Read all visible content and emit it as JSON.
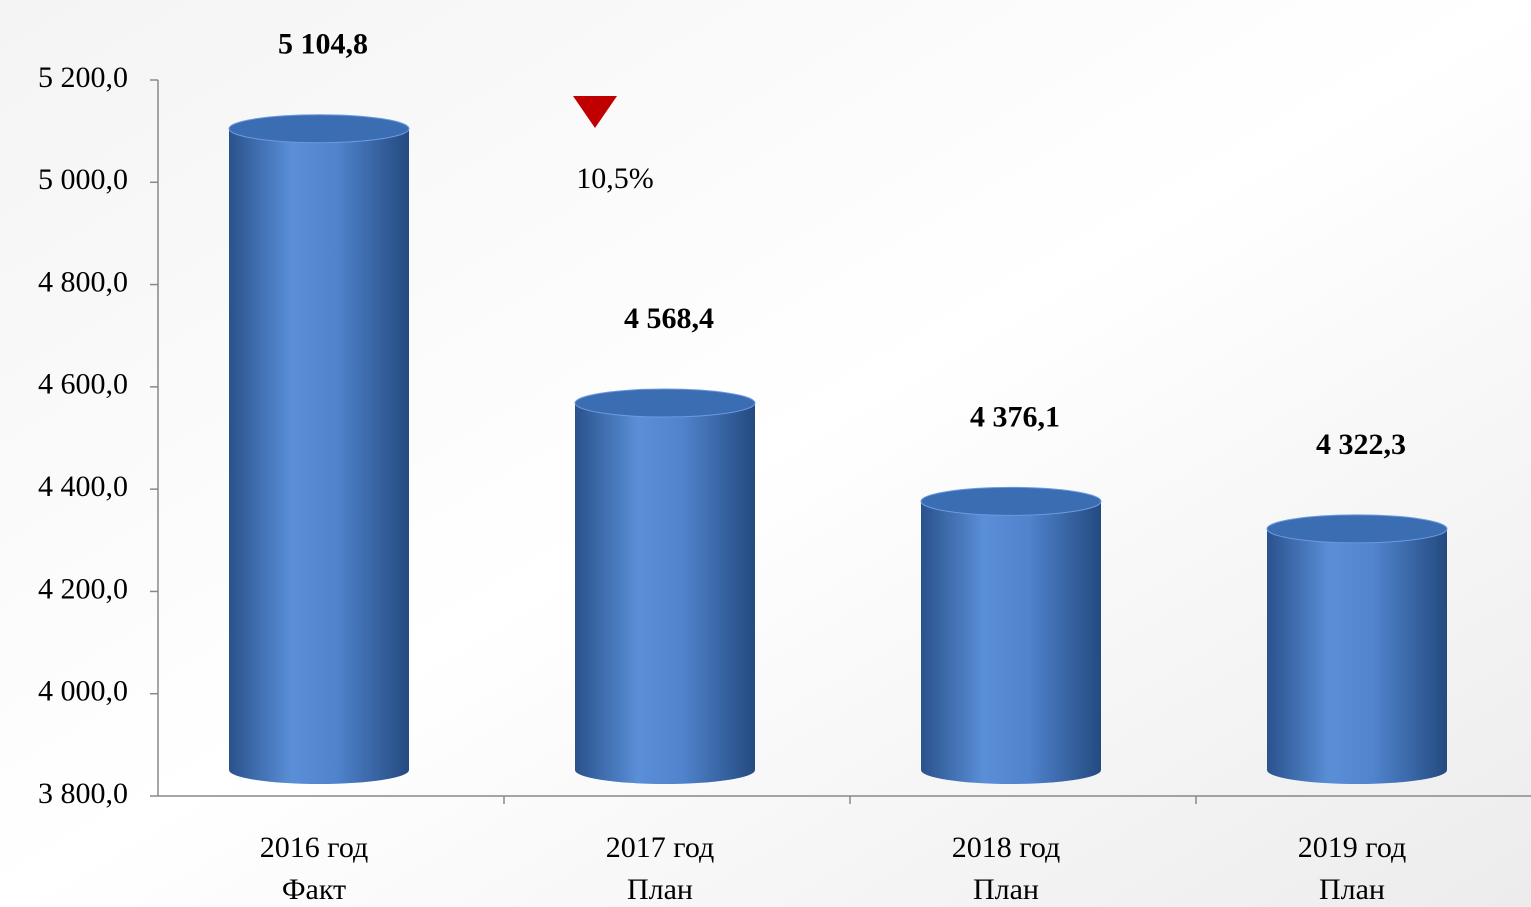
{
  "chart_data": {
    "type": "cylinder",
    "categories": [
      [
        "2016 год",
        "Факт"
      ],
      [
        "2017 год",
        "План"
      ],
      [
        "2018 год",
        "План"
      ],
      [
        "2019 год",
        "План"
      ]
    ],
    "values": [
      5104.8,
      4568.4,
      4376.1,
      4322.3
    ],
    "value_labels": [
      "5 104,8",
      "4 568,4",
      "4 376,1",
      "4 322,3"
    ],
    "color": "#4a7cc4",
    "ylim": [
      3800,
      5200
    ],
    "yticks": [
      {
        "value": 3800,
        "label": "3 800,0"
      },
      {
        "value": 4000,
        "label": "4 000,0"
      },
      {
        "value": 4200,
        "label": "4 200,0"
      },
      {
        "value": 4400,
        "label": "4 400,0"
      },
      {
        "value": 4600,
        "label": "4 600,0"
      },
      {
        "value": 4800,
        "label": "4 800,0"
      },
      {
        "value": 5000,
        "label": "5 000,0"
      },
      {
        "value": 5200,
        "label": "5 200,0"
      }
    ],
    "annotation": {
      "text": "10,5%",
      "color": "#c00000"
    }
  }
}
